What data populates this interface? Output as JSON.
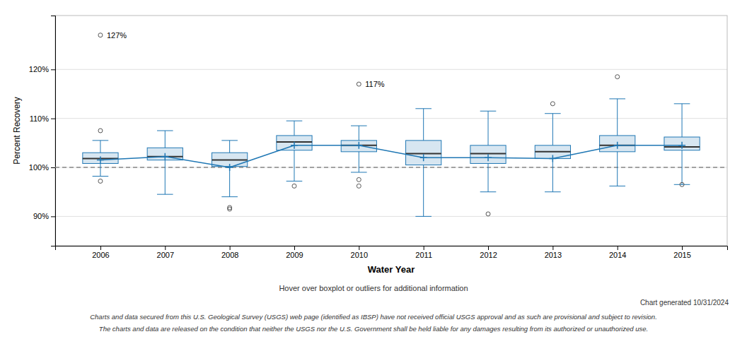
{
  "chart_data": {
    "type": "box",
    "xlabel": "Water Year",
    "ylabel": "Percent Recovery",
    "x": [
      2006,
      2007,
      2008,
      2009,
      2010,
      2011,
      2012,
      2013,
      2014,
      2015
    ],
    "boxes": [
      {
        "q1": 100.8,
        "median": 101.8,
        "q3": 103.0,
        "mean": 101.5,
        "whisker_low": 98.2,
        "whisker_high": 105.5,
        "outliers_low": [
          97.2
        ],
        "outliers_high": [
          107.5
        ]
      },
      {
        "q1": 101.5,
        "median": 102.2,
        "q3": 104.0,
        "mean": 102.2,
        "whisker_low": 94.5,
        "whisker_high": 107.5,
        "outliers_low": [],
        "outliers_high": []
      },
      {
        "q1": 100.2,
        "median": 101.5,
        "q3": 103.0,
        "mean": 100.0,
        "whisker_low": 94.0,
        "whisker_high": 105.5,
        "outliers_low": [
          91.5,
          91.8
        ],
        "outliers_high": []
      },
      {
        "q1": 103.5,
        "median": 105.2,
        "q3": 106.5,
        "mean": 104.5,
        "whisker_low": 97.2,
        "whisker_high": 109.5,
        "outliers_low": [
          96.2
        ],
        "outliers_high": []
      },
      {
        "q1": 103.2,
        "median": 104.5,
        "q3": 105.5,
        "mean": 104.5,
        "whisker_low": 99.0,
        "whisker_high": 108.5,
        "outliers_low": [
          97.5,
          96.2
        ],
        "outliers_high": []
      },
      {
        "q1": 100.5,
        "median": 102.8,
        "q3": 105.5,
        "mean": 102.0,
        "whisker_low": 90.0,
        "whisker_high": 112.0,
        "outliers_low": [],
        "outliers_high": []
      },
      {
        "q1": 100.8,
        "median": 102.8,
        "q3": 104.5,
        "mean": 102.0,
        "whisker_low": 95.0,
        "whisker_high": 111.5,
        "outliers_low": [
          90.5
        ],
        "outliers_high": []
      },
      {
        "q1": 101.8,
        "median": 103.2,
        "q3": 104.5,
        "mean": 101.8,
        "whisker_low": 95.0,
        "whisker_high": 111.0,
        "outliers_low": [],
        "outliers_high": [
          113.0
        ]
      },
      {
        "q1": 103.2,
        "median": 104.5,
        "q3": 106.5,
        "mean": 104.5,
        "whisker_low": 96.2,
        "whisker_high": 114.0,
        "outliers_low": [],
        "outliers_high": [
          118.5
        ]
      },
      {
        "q1": 103.5,
        "median": 104.2,
        "q3": 106.2,
        "mean": 104.5,
        "whisker_low": 96.5,
        "whisker_high": 113.0,
        "outliers_low": [
          96.5
        ],
        "outliers_high": []
      }
    ],
    "mean_line": [
      101.5,
      102.2,
      100.0,
      104.5,
      104.5,
      102.0,
      102.0,
      101.8,
      104.5,
      104.5
    ],
    "reference_line": 100,
    "annotations": [
      {
        "x": 2006,
        "y": 127,
        "label": "127%"
      },
      {
        "x": 2010,
        "y": 117,
        "label": "117%"
      }
    ],
    "xlim": [
      2005.3,
      2015.7
    ],
    "xticks": [
      2006,
      2007,
      2008,
      2009,
      2010,
      2011,
      2012,
      2013,
      2014,
      2015
    ],
    "ylim": [
      84,
      131
    ],
    "yticks": [
      {
        "value": 90,
        "label": "90%"
      },
      {
        "value": 100,
        "label": "100%"
      },
      {
        "value": 110,
        "label": "110%"
      },
      {
        "value": 120,
        "label": "120%"
      }
    ],
    "grid": true,
    "footnotes": [
      "Hover over boxplot or outliers for additional information",
      "Chart generated 10/31/2024",
      "Charts and data secured from this U.S. Geological Survey (USGS) web page (identified as IBSP) have not received official USGS approval and as such are provisional and subject to revision.",
      "The charts and data are released on the condition that neither the USGS nor the U.S. Government shall be held liable for any damages resulting from its authorized or unauthorized use."
    ]
  }
}
